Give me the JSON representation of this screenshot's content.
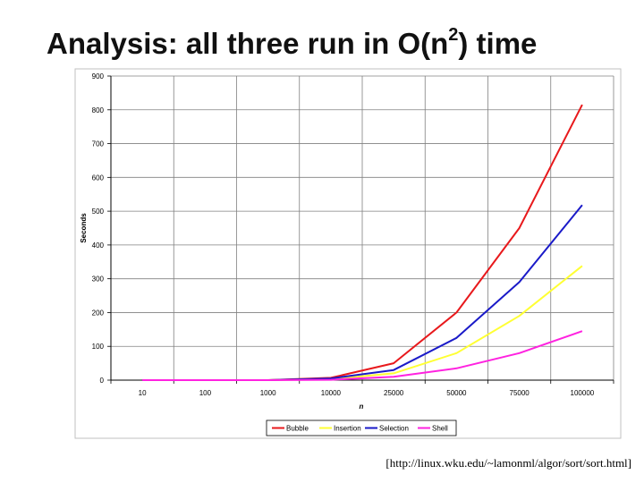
{
  "title": {
    "prefix": "Analysis: all three run in O(n",
    "exponent": "2",
    "suffix": ") time"
  },
  "citation": "[http://linux.wku.edu/~lamonml/algor/sort/sort.html]",
  "colors": {
    "Bubble": "#e8191c",
    "Insertion": "#ffff33",
    "Selection": "#1a1ac8",
    "Shell": "#ff22e0",
    "grid": "#808080",
    "axis": "#000000"
  },
  "chart_data": {
    "type": "line",
    "title": "",
    "xlabel": "n",
    "ylabel": "Seconds",
    "categories": [
      "10",
      "100",
      "1000",
      "10000",
      "25000",
      "50000",
      "75000",
      "100000"
    ],
    "x_tick_labels": [
      "10",
      "100",
      "1000",
      "10000",
      "25000",
      "50000",
      "75000",
      "100000"
    ],
    "y_tick_labels": [
      "0",
      "100",
      "200",
      "300",
      "400",
      "500",
      "600",
      "700",
      "800",
      "900"
    ],
    "ylim": [
      0,
      900
    ],
    "grid": true,
    "legend_position": "bottom",
    "series": [
      {
        "name": "Bubble",
        "values": [
          0,
          0,
          0,
          7,
          50,
          200,
          450,
          815
        ]
      },
      {
        "name": "Insertion",
        "values": [
          0,
          0,
          0,
          3,
          20,
          80,
          190,
          338
        ]
      },
      {
        "name": "Selection",
        "values": [
          0,
          0,
          0,
          5,
          30,
          125,
          290,
          518
        ]
      },
      {
        "name": "Shell",
        "values": [
          0,
          0,
          0,
          1,
          10,
          35,
          80,
          145
        ]
      }
    ]
  }
}
